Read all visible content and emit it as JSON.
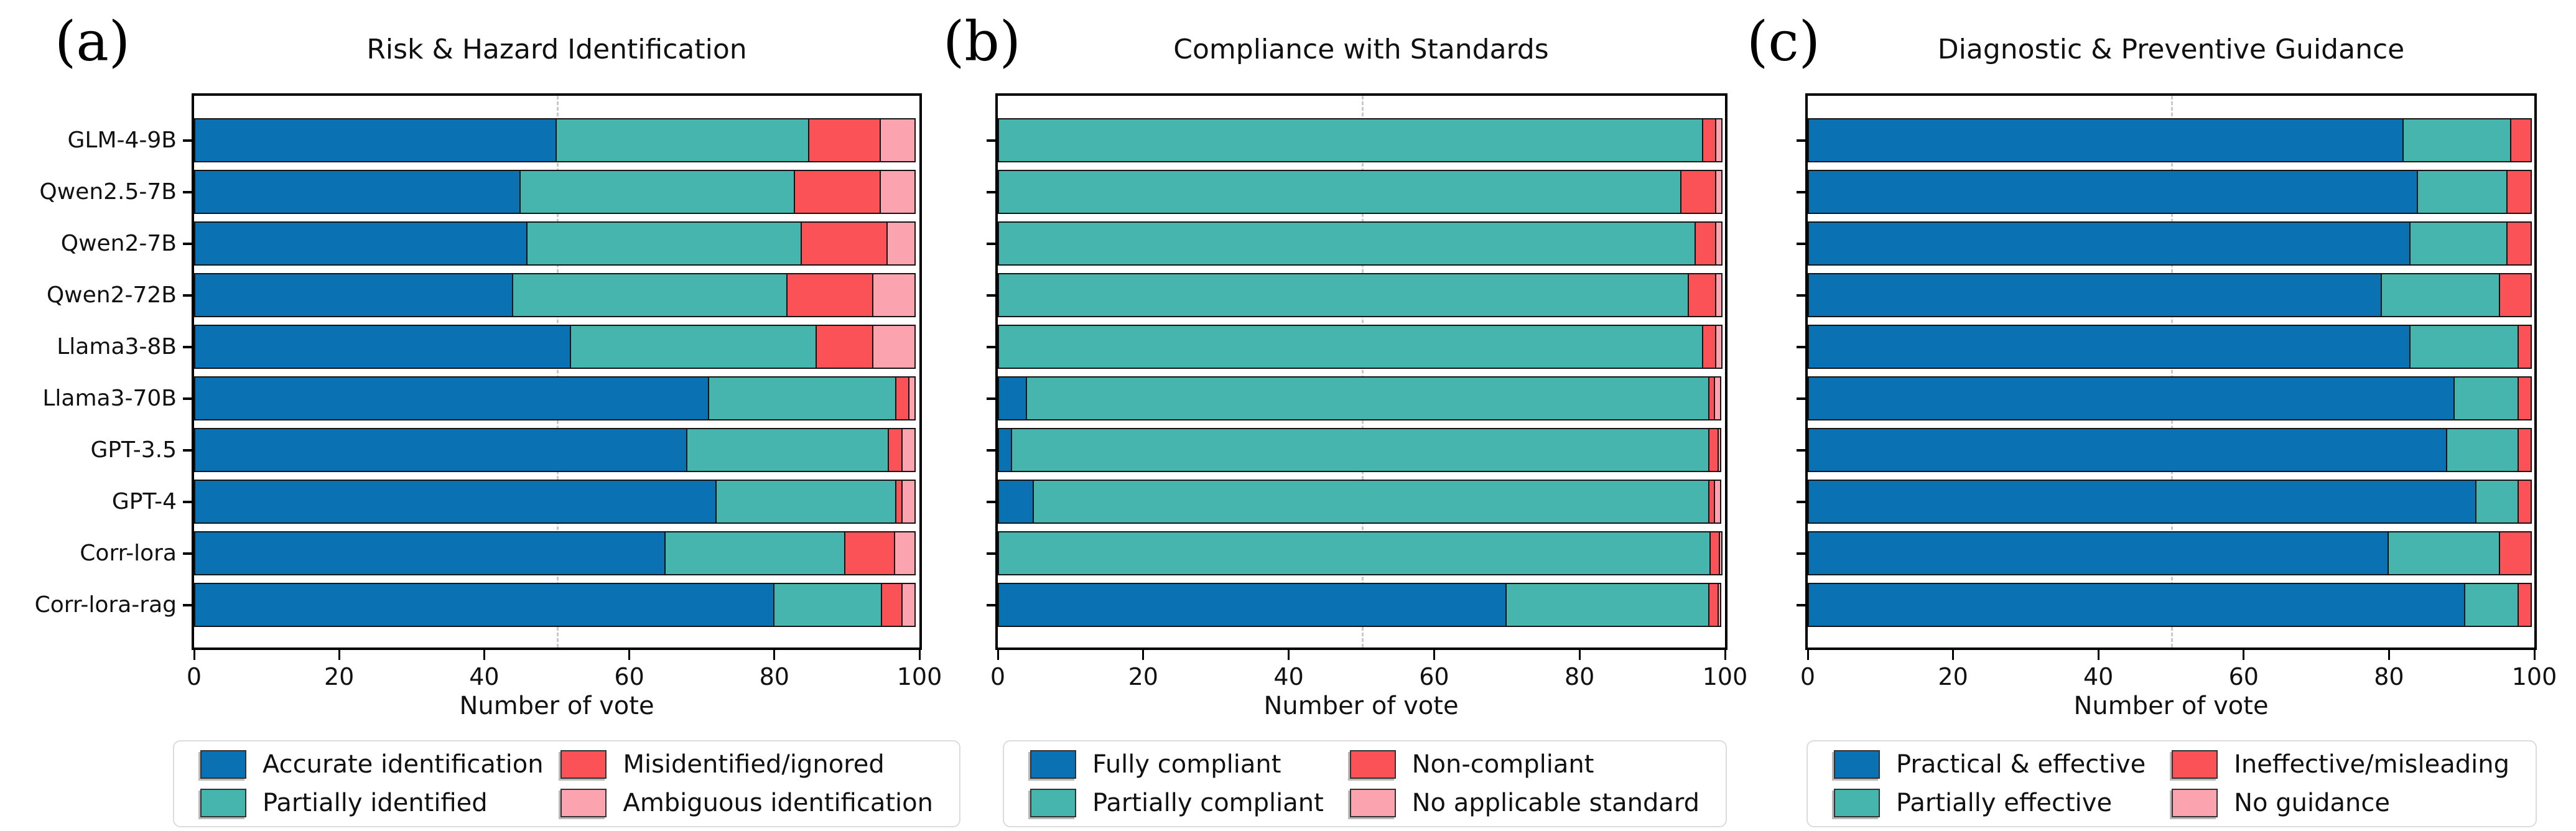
{
  "figure": {
    "background": "#ffffff",
    "xlabel": "Number of vote",
    "categories": [
      "GLM-4-9B",
      "Qwen2.5-7B",
      "Qwen2-7B",
      "Qwen2-72B",
      "Llama3-8B",
      "Llama3-70B",
      "GPT-3.5",
      "GPT-4",
      "Corr-lora",
      "Corr-lora-rag"
    ],
    "colors": {
      "blue": "#0a72b2",
      "teal": "#45b5ad",
      "red": "#fa5257",
      "pink": "#fba3ae",
      "bar_edge": "#141414",
      "gridline": "#c9c9c9"
    },
    "xticks": [
      0,
      20,
      40,
      60,
      80,
      100
    ]
  },
  "chart_data": [
    {
      "type": "bar",
      "orientation": "horizontal-stacked",
      "panel_letter": "(a)",
      "title": "Risk & Hazard Identification",
      "xlabel": "Number of vote",
      "xlim": [
        0,
        100
      ],
      "xticks": [
        0,
        20,
        40,
        60,
        80,
        100
      ],
      "grid": "dashed vertical line at 50",
      "legend_position": "below",
      "categories": [
        "GLM-4-9B",
        "Qwen2.5-7B",
        "Qwen2-7B",
        "Qwen2-72B",
        "Llama3-8B",
        "Llama3-70B",
        "GPT-3.5",
        "GPT-4",
        "Corr-lora",
        "Corr-lora-rag"
      ],
      "series": [
        {
          "name": "Accurate identification",
          "color": "#0a72b2",
          "values": [
            50,
            45,
            46,
            44,
            52,
            71,
            68,
            72,
            65,
            80
          ]
        },
        {
          "name": "Partially identified",
          "color": "#45b5ad",
          "values": [
            35,
            38,
            38,
            38,
            34,
            26,
            28,
            25,
            25,
            15
          ]
        },
        {
          "name": "Misidentified/ignored",
          "color": "#fa5257",
          "values": [
            10,
            12,
            12,
            12,
            8,
            2,
            2,
            1,
            7,
            3
          ]
        },
        {
          "name": "Ambiguous identification",
          "color": "#fba3ae",
          "values": [
            5,
            5,
            4,
            6,
            6,
            1,
            2,
            2,
            3,
            2
          ]
        }
      ]
    },
    {
      "type": "bar",
      "orientation": "horizontal-stacked",
      "panel_letter": "(b)",
      "title": "Compliance with Standards",
      "xlabel": "Number of vote",
      "xlim": [
        0,
        100
      ],
      "xticks": [
        0,
        20,
        40,
        60,
        80,
        100
      ],
      "grid": "dashed vertical line at 50",
      "legend_position": "below",
      "categories": [
        "GLM-4-9B",
        "Qwen2.5-7B",
        "Qwen2-7B",
        "Qwen2-72B",
        "Llama3-8B",
        "Llama3-70B",
        "GPT-3.5",
        "GPT-4",
        "Corr-lora",
        "Corr-lora-rag"
      ],
      "series": [
        {
          "name": "Fully compliant",
          "color": "#0a72b2",
          "values": [
            0,
            0,
            0,
            0,
            0,
            4,
            2,
            5,
            0,
            70
          ]
        },
        {
          "name": "Partially compliant",
          "color": "#45b5ad",
          "values": [
            97,
            94,
            96,
            95,
            97,
            94,
            96,
            93,
            98,
            28
          ]
        },
        {
          "name": "Non-compliant",
          "color": "#fa5257",
          "values": [
            2,
            5,
            3,
            4,
            2,
            1,
            1.5,
            1,
            1.5,
            1.5
          ]
        },
        {
          "name": "No applicable standard",
          "color": "#fba3ae",
          "values": [
            1,
            1,
            1,
            1,
            1,
            1,
            0.5,
            1,
            0.5,
            0.5
          ]
        }
      ]
    },
    {
      "type": "bar",
      "orientation": "horizontal-stacked",
      "panel_letter": "(c)",
      "title": "Diagnostic & Preventive Guidance",
      "xlabel": "Number of vote",
      "xlim": [
        0,
        100
      ],
      "xticks": [
        0,
        20,
        40,
        60,
        80,
        100
      ],
      "grid": "dashed vertical line at 50",
      "legend_position": "below",
      "categories": [
        "GLM-4-9B",
        "Qwen2.5-7B",
        "Qwen2-7B",
        "Qwen2-72B",
        "Llama3-8B",
        "Llama3-70B",
        "GPT-3.5",
        "GPT-4",
        "Corr-lora",
        "Corr-lora-rag"
      ],
      "series": [
        {
          "name": "Practical & effective",
          "color": "#0a72b2",
          "values": [
            82,
            84,
            83,
            79,
            83,
            89,
            88,
            92,
            80,
            90.5
          ]
        },
        {
          "name": "Partially effective",
          "color": "#45b5ad",
          "values": [
            15,
            12.5,
            13.5,
            16.5,
            15,
            9,
            10,
            6,
            15.5,
            7.5
          ]
        },
        {
          "name": "Ineffective/misleading",
          "color": "#fa5257",
          "values": [
            3,
            3.5,
            3.5,
            4.5,
            2,
            2,
            2,
            2,
            4.5,
            2
          ]
        },
        {
          "name": "No guidance",
          "color": "#fba3ae",
          "values": [
            0,
            0,
            0,
            0,
            0,
            0,
            0,
            0,
            0,
            0
          ]
        }
      ]
    }
  ]
}
